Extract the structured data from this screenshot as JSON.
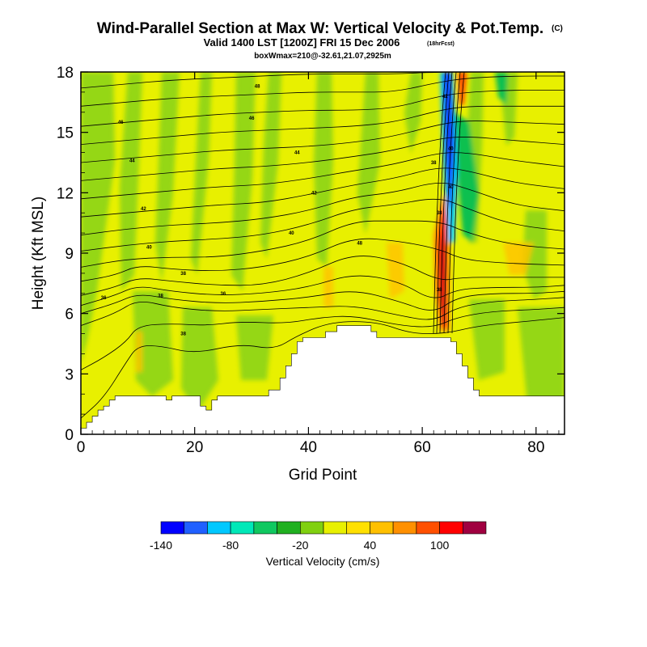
{
  "header": {
    "title": "Wind-Parallel Section at Max W: Vertical Velocity & Pot.Temp.",
    "title_mark": "(C)",
    "valid_line": "Valid 1400 LST [1200Z] FRI 15 Dec 2006",
    "forecast_tag": "(18hrFcst)",
    "box_line": "boxWmax=210@-32.61,21.07,2925m"
  },
  "chart_data": {
    "type": "heatmap",
    "xlabel": "Grid Point",
    "ylabel": "Height (Kft MSL)",
    "xlim": [
      0,
      85
    ],
    "ylim": [
      0,
      18
    ],
    "xticks": [
      0,
      20,
      40,
      60,
      80
    ],
    "yticks": [
      0,
      3,
      6,
      9,
      12,
      15,
      18
    ],
    "grid": false,
    "colorbar": {
      "label": "Vertical Velocity (cm/s)",
      "levels": [
        -140,
        -120,
        -100,
        -80,
        -60,
        -40,
        -20,
        0,
        20,
        40,
        60,
        80,
        100,
        120,
        140
      ],
      "tick_labels": [
        -140,
        -80,
        -20,
        40,
        100
      ],
      "colors": [
        "#0000ff",
        "#2060ff",
        "#00c8ff",
        "#00e8b8",
        "#10c860",
        "#20b020",
        "#80d010",
        "#e8f000",
        "#ffe000",
        "#ffc000",
        "#ff9000",
        "#ff5000",
        "#ff0000",
        "#a00040"
      ]
    },
    "terrain_kft": [
      [
        0,
        0.3
      ],
      [
        1,
        0.6
      ],
      [
        2,
        0.9
      ],
      [
        3,
        1.2
      ],
      [
        4,
        1.4
      ],
      [
        5,
        1.7
      ],
      [
        6,
        1.9
      ],
      [
        10,
        1.9
      ],
      [
        14,
        1.9
      ],
      [
        15,
        1.7
      ],
      [
        16,
        1.9
      ],
      [
        20,
        1.9
      ],
      [
        21,
        1.4
      ],
      [
        22,
        1.2
      ],
      [
        23,
        1.7
      ],
      [
        24,
        1.9
      ],
      [
        32,
        1.9
      ],
      [
        33,
        2.2
      ],
      [
        35,
        2.8
      ],
      [
        36,
        3.4
      ],
      [
        37,
        4.0
      ],
      [
        38,
        4.6
      ],
      [
        39,
        4.8
      ],
      [
        42,
        4.8
      ],
      [
        43,
        5.1
      ],
      [
        45,
        5.4
      ],
      [
        50,
        5.4
      ],
      [
        51,
        5.1
      ],
      [
        52,
        4.8
      ],
      [
        56,
        4.8
      ],
      [
        60,
        4.8
      ],
      [
        64,
        4.8
      ],
      [
        65,
        4.6
      ],
      [
        66,
        4.0
      ],
      [
        67,
        3.4
      ],
      [
        68,
        2.8
      ],
      [
        69,
        2.2
      ],
      [
        70,
        1.9
      ],
      [
        80,
        1.9
      ],
      [
        84,
        1.9
      ],
      [
        85,
        1.6
      ]
    ],
    "theta_isotherms_K": [
      {
        "label": "50",
        "points": [
          [
            0,
            0.8
          ],
          [
            4,
            1.8
          ],
          [
            8,
            3.6
          ],
          [
            10,
            4.4
          ],
          [
            14,
            4.4
          ],
          [
            20,
            4.0
          ],
          [
            28,
            4.5
          ],
          [
            34,
            4.2
          ],
          [
            38,
            4.9
          ],
          [
            44,
            5.6
          ],
          [
            52,
            5.6
          ],
          [
            58,
            5.0
          ],
          [
            64,
            5.0
          ],
          [
            70,
            5.4
          ],
          [
            78,
            5.6
          ],
          [
            85,
            5.8
          ]
        ]
      },
      {
        "label": "",
        "points": [
          [
            0,
            3.2
          ],
          [
            4,
            3.8
          ],
          [
            8,
            4.6
          ],
          [
            10,
            5.4
          ],
          [
            16,
            5.5
          ],
          [
            22,
            5.4
          ],
          [
            28,
            5.6
          ],
          [
            36,
            5.5
          ],
          [
            42,
            5.8
          ],
          [
            48,
            5.9
          ],
          [
            56,
            5.4
          ],
          [
            62,
            5.3
          ],
          [
            66,
            5.8
          ],
          [
            72,
            6.1
          ],
          [
            80,
            6.2
          ],
          [
            85,
            6.3
          ]
        ]
      },
      {
        "label": "",
        "points": [
          [
            0,
            5.4
          ],
          [
            6,
            6.0
          ],
          [
            10,
            6.7
          ],
          [
            16,
            6.3
          ],
          [
            24,
            6.1
          ],
          [
            32,
            6.2
          ],
          [
            40,
            6.3
          ],
          [
            48,
            6.4
          ],
          [
            56,
            5.9
          ],
          [
            62,
            5.6
          ],
          [
            66,
            6.3
          ],
          [
            72,
            6.6
          ],
          [
            80,
            6.7
          ],
          [
            85,
            6.8
          ]
        ]
      },
      {
        "label": "",
        "points": [
          [
            0,
            6.0
          ],
          [
            6,
            6.5
          ],
          [
            10,
            7.0
          ],
          [
            16,
            6.7
          ],
          [
            24,
            6.5
          ],
          [
            32,
            6.6
          ],
          [
            40,
            6.8
          ],
          [
            48,
            7.2
          ],
          [
            56,
            6.6
          ],
          [
            62,
            6.0
          ],
          [
            66,
            6.8
          ],
          [
            72,
            7.0
          ],
          [
            80,
            7.0
          ],
          [
            85,
            7.1
          ]
        ]
      },
      {
        "label": "",
        "points": [
          [
            0,
            6.4
          ],
          [
            6,
            6.9
          ],
          [
            10,
            7.4
          ],
          [
            16,
            7.1
          ],
          [
            24,
            6.9
          ],
          [
            32,
            7.0
          ],
          [
            40,
            7.3
          ],
          [
            48,
            8.0
          ],
          [
            56,
            7.6
          ],
          [
            62,
            6.6
          ],
          [
            66,
            7.2
          ],
          [
            72,
            7.3
          ],
          [
            80,
            7.3
          ],
          [
            85,
            7.4
          ]
        ]
      },
      {
        "label": "",
        "points": [
          [
            0,
            6.9
          ],
          [
            6,
            7.3
          ],
          [
            10,
            7.8
          ],
          [
            16,
            7.6
          ],
          [
            24,
            7.4
          ],
          [
            32,
            7.4
          ],
          [
            40,
            8.0
          ],
          [
            48,
            9.0
          ],
          [
            56,
            8.6
          ],
          [
            63,
            7.6
          ],
          [
            67,
            7.8
          ],
          [
            74,
            7.8
          ],
          [
            85,
            7.8
          ]
        ]
      },
      {
        "label": "",
        "points": [
          [
            0,
            7.6
          ],
          [
            6,
            7.9
          ],
          [
            10,
            8.4
          ],
          [
            16,
            8.2
          ],
          [
            24,
            8.1
          ],
          [
            32,
            8.3
          ],
          [
            40,
            8.8
          ],
          [
            48,
            9.8
          ],
          [
            56,
            9.6
          ],
          [
            63,
            9.2
          ],
          [
            67,
            8.7
          ],
          [
            74,
            8.5
          ],
          [
            85,
            8.4
          ]
        ]
      },
      {
        "label": "",
        "points": [
          [
            0,
            8.3
          ],
          [
            8,
            8.7
          ],
          [
            16,
            8.8
          ],
          [
            24,
            8.8
          ],
          [
            32,
            9.1
          ],
          [
            40,
            9.6
          ],
          [
            48,
            10.6
          ],
          [
            55,
            10.6
          ],
          [
            63,
            10.6
          ],
          [
            68,
            10.0
          ],
          [
            76,
            9.4
          ],
          [
            85,
            9.2
          ]
        ]
      },
      {
        "label": "",
        "points": [
          [
            0,
            9.1
          ],
          [
            8,
            9.4
          ],
          [
            16,
            9.6
          ],
          [
            24,
            9.7
          ],
          [
            32,
            9.9
          ],
          [
            40,
            10.4
          ],
          [
            48,
            11.2
          ],
          [
            55,
            11.4
          ],
          [
            63,
            11.8
          ],
          [
            68,
            11.2
          ],
          [
            76,
            10.4
          ],
          [
            85,
            10.1
          ]
        ]
      },
      {
        "label": "",
        "points": [
          [
            0,
            9.9
          ],
          [
            8,
            10.2
          ],
          [
            16,
            10.4
          ],
          [
            24,
            10.5
          ],
          [
            32,
            10.7
          ],
          [
            40,
            11.1
          ],
          [
            48,
            11.8
          ],
          [
            55,
            12.0
          ],
          [
            63,
            12.6
          ],
          [
            68,
            12.2
          ],
          [
            76,
            11.4
          ],
          [
            85,
            11.1
          ]
        ]
      },
      {
        "label": "",
        "points": [
          [
            0,
            10.8
          ],
          [
            8,
            11.0
          ],
          [
            16,
            11.2
          ],
          [
            24,
            11.4
          ],
          [
            32,
            11.5
          ],
          [
            40,
            11.9
          ],
          [
            48,
            12.4
          ],
          [
            55,
            12.7
          ],
          [
            63,
            13.3
          ],
          [
            68,
            13.1
          ],
          [
            76,
            12.5
          ],
          [
            85,
            12.2
          ]
        ]
      },
      {
        "label": "",
        "points": [
          [
            0,
            11.7
          ],
          [
            8,
            11.9
          ],
          [
            16,
            12.1
          ],
          [
            24,
            12.3
          ],
          [
            32,
            12.4
          ],
          [
            40,
            12.7
          ],
          [
            48,
            13.1
          ],
          [
            55,
            13.4
          ],
          [
            63,
            14.0
          ],
          [
            68,
            14.0
          ],
          [
            76,
            13.6
          ],
          [
            85,
            13.3
          ]
        ]
      },
      {
        "label": "",
        "points": [
          [
            0,
            12.6
          ],
          [
            8,
            12.8
          ],
          [
            16,
            13.0
          ],
          [
            24,
            13.2
          ],
          [
            32,
            13.3
          ],
          [
            40,
            13.5
          ],
          [
            48,
            13.8
          ],
          [
            55,
            14.1
          ],
          [
            63,
            14.7
          ],
          [
            68,
            14.8
          ],
          [
            76,
            14.6
          ],
          [
            85,
            14.4
          ]
        ]
      },
      {
        "label": "",
        "points": [
          [
            0,
            13.5
          ],
          [
            8,
            13.7
          ],
          [
            16,
            13.9
          ],
          [
            24,
            14.1
          ],
          [
            32,
            14.2
          ],
          [
            40,
            14.3
          ],
          [
            48,
            14.5
          ],
          [
            55,
            14.8
          ],
          [
            63,
            15.4
          ],
          [
            68,
            15.6
          ],
          [
            76,
            15.5
          ],
          [
            85,
            15.4
          ]
        ]
      },
      {
        "label": "",
        "points": [
          [
            0,
            14.4
          ],
          [
            8,
            14.6
          ],
          [
            16,
            14.8
          ],
          [
            24,
            15.0
          ],
          [
            32,
            15.1
          ],
          [
            40,
            15.2
          ],
          [
            48,
            15.3
          ],
          [
            55,
            15.5
          ],
          [
            63,
            16.1
          ],
          [
            68,
            16.3
          ],
          [
            76,
            16.3
          ],
          [
            85,
            16.3
          ]
        ]
      },
      {
        "label": "",
        "points": [
          [
            0,
            15.3
          ],
          [
            8,
            15.5
          ],
          [
            16,
            15.7
          ],
          [
            24,
            15.9
          ],
          [
            32,
            16.0
          ],
          [
            40,
            16.1
          ],
          [
            48,
            16.1
          ],
          [
            55,
            16.2
          ],
          [
            63,
            16.8
          ],
          [
            68,
            17.0
          ],
          [
            76,
            17.1
          ],
          [
            85,
            17.1
          ]
        ]
      },
      {
        "label": "",
        "points": [
          [
            0,
            16.3
          ],
          [
            8,
            16.5
          ],
          [
            16,
            16.7
          ],
          [
            24,
            16.8
          ],
          [
            32,
            16.9
          ],
          [
            40,
            17.0
          ],
          [
            48,
            17.0
          ],
          [
            55,
            17.0
          ],
          [
            63,
            17.5
          ],
          [
            68,
            17.7
          ],
          [
            76,
            17.8
          ],
          [
            85,
            17.8
          ]
        ]
      },
      {
        "label": "",
        "points": [
          [
            0,
            17.2
          ],
          [
            8,
            17.4
          ],
          [
            16,
            17.6
          ],
          [
            24,
            17.7
          ],
          [
            32,
            17.8
          ],
          [
            40,
            17.9
          ],
          [
            48,
            17.9
          ],
          [
            55,
            17.9
          ],
          [
            63,
            18.0
          ],
          [
            85,
            18.0
          ]
        ]
      }
    ],
    "contour_labels": [
      {
        "text": "36",
        "x": 4,
        "y": 6.8
      },
      {
        "text": "38",
        "x": 14,
        "y": 6.9
      },
      {
        "text": "36",
        "x": 25,
        "y": 7.0
      },
      {
        "text": "38",
        "x": 18,
        "y": 5.0
      },
      {
        "text": "38",
        "x": 18,
        "y": 8.0
      },
      {
        "text": "40",
        "x": 12,
        "y": 9.3
      },
      {
        "text": "40",
        "x": 37,
        "y": 10.0
      },
      {
        "text": "42",
        "x": 11,
        "y": 11.2
      },
      {
        "text": "42",
        "x": 41,
        "y": 12.0
      },
      {
        "text": "44",
        "x": 9,
        "y": 13.6
      },
      {
        "text": "44",
        "x": 38,
        "y": 14.0
      },
      {
        "text": "46",
        "x": 7,
        "y": 15.5
      },
      {
        "text": "46",
        "x": 30,
        "y": 15.7
      },
      {
        "text": "48",
        "x": 31,
        "y": 17.3
      },
      {
        "text": "48",
        "x": 49,
        "y": 9.5
      },
      {
        "text": "38",
        "x": 63,
        "y": 7.2
      },
      {
        "text": "38",
        "x": 63,
        "y": 11.0
      },
      {
        "text": "38",
        "x": 62,
        "y": 13.5
      },
      {
        "text": "40",
        "x": 65,
        "y": 12.3
      },
      {
        "text": "40",
        "x": 65,
        "y": 14.2
      },
      {
        "text": "42",
        "x": 64,
        "y": 16.8
      }
    ]
  }
}
